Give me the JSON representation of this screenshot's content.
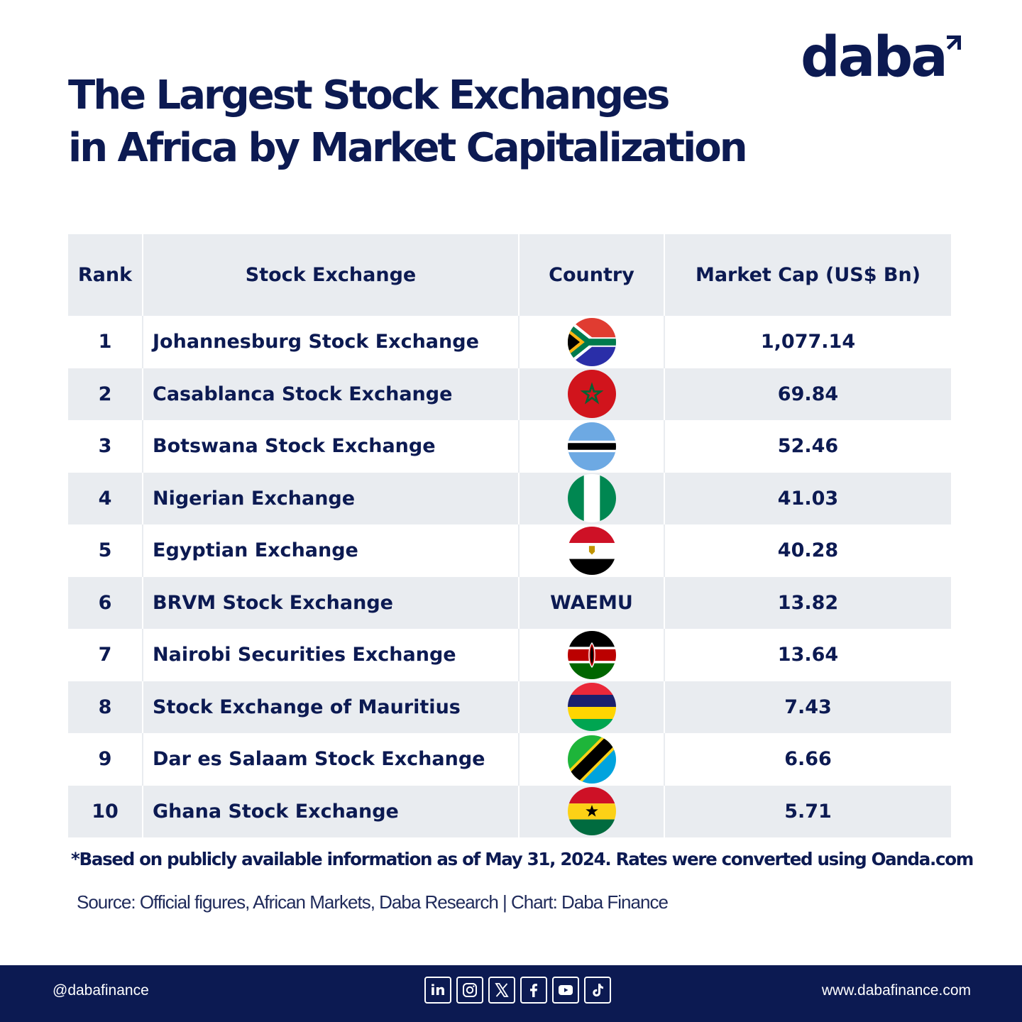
{
  "brand": {
    "name": "daba",
    "color": "#0c1a52"
  },
  "title": {
    "line1": "The Largest Stock Exchanges",
    "line2": "in Africa by Market Capitalization"
  },
  "chart_data": {
    "type": "table",
    "title": "The Largest Stock Exchanges in Africa by Market Capitalization",
    "columns": [
      "Rank",
      "Stock Exchange",
      "Country",
      "Market Cap (US$ Bn)"
    ],
    "rows": [
      {
        "rank": "1",
        "exchange": "Johannesburg Stock Exchange",
        "country_flag": "south-africa",
        "country_text": "",
        "market_cap": "1,077.14"
      },
      {
        "rank": "2",
        "exchange": "Casablanca Stock Exchange",
        "country_flag": "morocco",
        "country_text": "",
        "market_cap": "69.84"
      },
      {
        "rank": "3",
        "exchange": "Botswana Stock Exchange",
        "country_flag": "botswana",
        "country_text": "",
        "market_cap": "52.46"
      },
      {
        "rank": "4",
        "exchange": "Nigerian Exchange",
        "country_flag": "nigeria",
        "country_text": "",
        "market_cap": "41.03"
      },
      {
        "rank": "5",
        "exchange": "Egyptian Exchange",
        "country_flag": "egypt",
        "country_text": "",
        "market_cap": "40.28"
      },
      {
        "rank": "6",
        "exchange": "BRVM Stock Exchange",
        "country_flag": "",
        "country_text": "WAEMU",
        "market_cap": "13.82"
      },
      {
        "rank": "7",
        "exchange": "Nairobi Securities Exchange",
        "country_flag": "kenya",
        "country_text": "",
        "market_cap": "13.64"
      },
      {
        "rank": "8",
        "exchange": "Stock Exchange of Mauritius",
        "country_flag": "mauritius",
        "country_text": "",
        "market_cap": "7.43"
      },
      {
        "rank": "9",
        "exchange": "Dar es Salaam Stock Exchange",
        "country_flag": "tanzania",
        "country_text": "",
        "market_cap": "6.66"
      },
      {
        "rank": "10",
        "exchange": "Ghana Stock Exchange",
        "country_flag": "ghana",
        "country_text": "",
        "market_cap": "5.71"
      }
    ]
  },
  "note": "*Based on publicly available information as of May 31, 2024. Rates were converted using Oanda.com",
  "source": "Source: Official figures, African Markets, Daba Research | Chart: Daba Finance",
  "footer": {
    "handle": "@dabafinance",
    "website": "www.dabafinance.com",
    "socials": [
      "linkedin-icon",
      "instagram-icon",
      "x-icon",
      "facebook-icon",
      "youtube-icon",
      "tiktok-icon"
    ],
    "linkedin_text": "in"
  }
}
